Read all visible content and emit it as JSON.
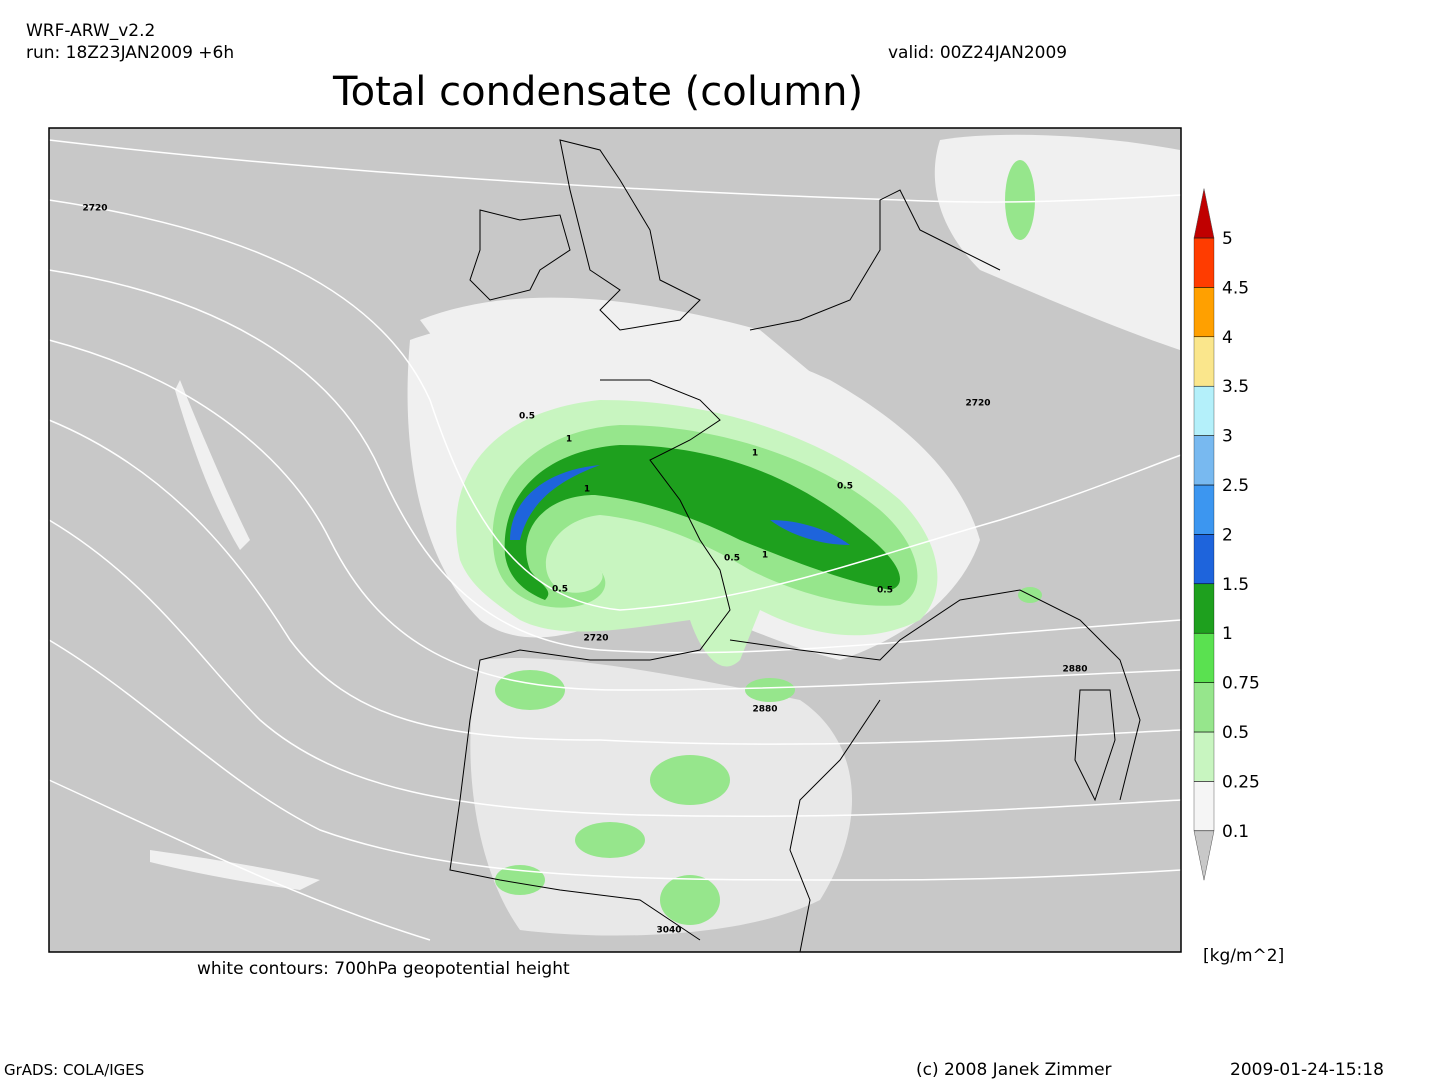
{
  "header": {
    "model": "WRF-ARW_v2.2",
    "run": "run: 18Z23JAN2009 +6h",
    "valid": "valid: 00Z24JAN2009",
    "title": "Total condensate (column)"
  },
  "map": {
    "contour_labels": [
      "2720",
      "2720",
      "2720",
      "2880",
      "2880",
      "3040",
      "0.5",
      "1",
      "1",
      "1",
      "0.5",
      "0.5",
      "1",
      "0.5",
      "0.5"
    ]
  },
  "caption": "white contours: 700hPa geopotential height",
  "colorbar": {
    "levels": [
      0.1,
      0.25,
      0.5,
      0.75,
      1,
      1.5,
      2,
      2.5,
      3,
      3.5,
      4,
      4.5,
      5
    ],
    "colors": [
      "#c8c8c8",
      "#f5f5f5",
      "#c8f5c0",
      "#96e68c",
      "#5ae150",
      "#1ea01e",
      "#1e64dc",
      "#3c96f0",
      "#78b9f0",
      "#b4f0fa",
      "#fae68c",
      "#ffa000",
      "#ff3c00",
      "#c00000"
    ],
    "unit": "[kg/m^2]"
  },
  "footer": {
    "software": "GrADS: COLA/IGES",
    "credit": "(c) 2008 Janek Zimmer",
    "timestamp": "2009-01-24-15:18"
  }
}
